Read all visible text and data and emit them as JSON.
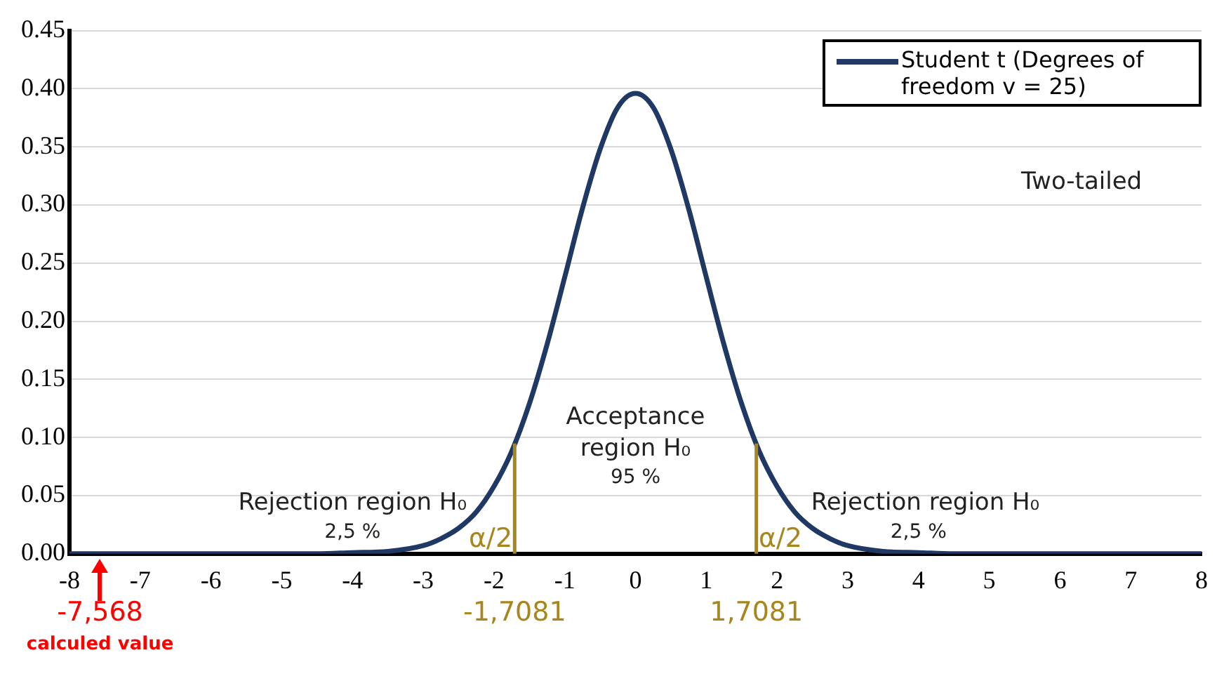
{
  "chart_data": {
    "type": "line",
    "x": [
      -8,
      -7,
      -6,
      -5,
      -4.5,
      -4,
      -3.5,
      -3,
      -2.75,
      -2.5,
      -2.25,
      -2,
      -1.75,
      -1.5,
      -1.25,
      -1,
      -0.75,
      -0.5,
      -0.25,
      0,
      0.25,
      0.5,
      0.75,
      1,
      1.25,
      1.5,
      1.75,
      2,
      2.25,
      2.5,
      2.75,
      3,
      3.5,
      4,
      4.5,
      5,
      6,
      7,
      8
    ],
    "series": [
      {
        "name": "Student t (Degrees of freedom v = 25)",
        "color": "#1f3864",
        "values": [
          0,
          0,
          0,
          0,
          0,
          0.001,
          0.002,
          0.007,
          0.013,
          0.022,
          0.036,
          0.058,
          0.088,
          0.129,
          0.18,
          0.238,
          0.297,
          0.348,
          0.384,
          0.396,
          0.384,
          0.348,
          0.297,
          0.238,
          0.18,
          0.129,
          0.088,
          0.058,
          0.036,
          0.022,
          0.013,
          0.007,
          0.002,
          0.001,
          0,
          0,
          0,
          0,
          0
        ]
      }
    ],
    "xlim": [
      -8,
      8
    ],
    "xticks": [
      -8,
      -7,
      -6,
      -5,
      -4,
      -3,
      -2,
      -1,
      0,
      1,
      2,
      3,
      4,
      5,
      6,
      7,
      8
    ],
    "ylim": [
      0,
      0.45
    ],
    "yticks": [
      {
        "value": 0,
        "label": "0.00"
      },
      {
        "value": 0.05,
        "label": "0.05"
      },
      {
        "value": 0.1,
        "label": "0.10"
      },
      {
        "value": 0.15,
        "label": "0.15"
      },
      {
        "value": 0.2,
        "label": "0.20"
      },
      {
        "value": 0.25,
        "label": "0.25"
      },
      {
        "value": 0.3,
        "label": "0.30"
      },
      {
        "value": 0.35,
        "label": "0.35"
      },
      {
        "value": 0.4,
        "label": "0.40"
      },
      {
        "value": 0.45,
        "label": "0.45"
      }
    ],
    "grid": "y",
    "legend": "top right",
    "marker": "none",
    "line_style": "solid",
    "ref_lines": [
      {
        "axis": "x",
        "value": -1.7081,
        "label": "-1,7081",
        "color": "#a8861e"
      },
      {
        "axis": "x",
        "value": 1.7081,
        "label": "1,7081",
        "color": "#a8861e"
      }
    ],
    "annotations": [
      "Two-tailed",
      "Acceptance",
      "region H₀",
      "95 %",
      "Rejection region H₀",
      "2,5 %",
      "Rejection region H₀",
      "2,5 %",
      "α/2",
      "α/2",
      {
        "text": "-7,568",
        "x": -7.568,
        "y": 0
      },
      "calculed value"
    ]
  }
}
